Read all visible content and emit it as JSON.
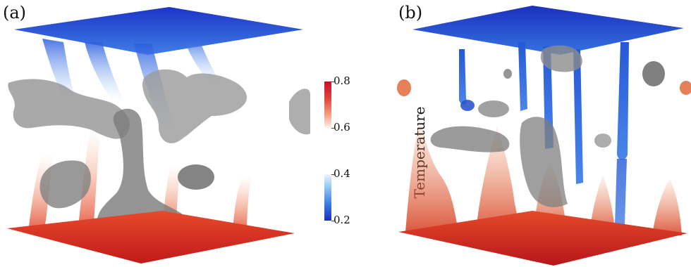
{
  "panels": [
    {
      "label": "(a)"
    },
    {
      "label": "(b)"
    }
  ],
  "colorbar": {
    "title": "Temperature",
    "ticks": [
      "0.8",
      "0.6",
      "0.4",
      "0.2"
    ],
    "colors": {
      "hot": "#c8102e",
      "cold": "#1c2fc0",
      "gray": "#8c8c8c"
    }
  }
}
